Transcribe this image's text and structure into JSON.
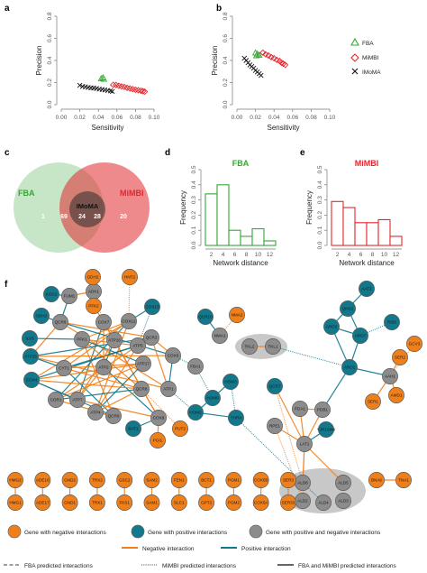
{
  "panel_labels": {
    "a": "a",
    "b": "b",
    "c": "c",
    "d": "d",
    "e": "e",
    "f": "f"
  },
  "colors": {
    "fba": "#35a735",
    "mimbi": "#e0282e",
    "imoma": "#111111",
    "orange": "#ef7f1a",
    "teal": "#12788c",
    "gray": "#8c8c8c"
  },
  "chart_data": [
    {
      "id": "a",
      "type": "scatter",
      "xlabel": "Sensitivity",
      "ylabel": "Precision",
      "xlim": [
        0,
        0.1
      ],
      "ylim": [
        0,
        0.8
      ],
      "x_ticks": [
        "0.00",
        "0.02",
        "0.04",
        "0.06",
        "0.08",
        "0.10"
      ],
      "y_ticks": [
        "0.0",
        "0.2",
        "0.4",
        "0.6",
        "0.8"
      ],
      "series": [
        {
          "name": "FBA",
          "marker": "triangle",
          "points": [
            [
              0.045,
              0.245
            ],
            [
              0.043,
              0.236
            ],
            [
              0.046,
              0.232
            ]
          ]
        },
        {
          "name": "MiMBI",
          "marker": "diamond",
          "points": [
            [
              0.056,
              0.18
            ],
            [
              0.059,
              0.178
            ],
            [
              0.062,
              0.171
            ],
            [
              0.065,
              0.165
            ],
            [
              0.068,
              0.16
            ],
            [
              0.071,
              0.152
            ],
            [
              0.074,
              0.147
            ],
            [
              0.077,
              0.141
            ],
            [
              0.08,
              0.135
            ],
            [
              0.083,
              0.131
            ],
            [
              0.086,
              0.126
            ],
            [
              0.088,
              0.122
            ],
            [
              0.09,
              0.118
            ]
          ]
        },
        {
          "name": "IMoMA",
          "marker": "cross",
          "points": [
            [
              0.02,
              0.175
            ],
            [
              0.023,
              0.165
            ],
            [
              0.026,
              0.161
            ],
            [
              0.029,
              0.156
            ],
            [
              0.032,
              0.152
            ],
            [
              0.035,
              0.15
            ],
            [
              0.038,
              0.146
            ],
            [
              0.041,
              0.14
            ],
            [
              0.044,
              0.137
            ],
            [
              0.047,
              0.133
            ],
            [
              0.05,
              0.129
            ],
            [
              0.053,
              0.125
            ],
            [
              0.055,
              0.12
            ]
          ]
        }
      ]
    },
    {
      "id": "b",
      "type": "scatter",
      "xlabel": "Sensitivity",
      "ylabel": "Precision",
      "xlim": [
        0,
        0.1
      ],
      "ylim": [
        0,
        0.8
      ],
      "x_ticks": [
        "0.00",
        "0.02",
        "0.04",
        "0.06",
        "0.08",
        "0.10"
      ],
      "y_ticks": [
        "0.0",
        "0.2",
        "0.4",
        "0.6",
        "0.8"
      ],
      "series": [
        {
          "name": "FBA",
          "marker": "triangle",
          "points": [
            [
              0.02,
              0.47
            ],
            [
              0.022,
              0.46
            ],
            [
              0.024,
              0.45
            ],
            [
              0.021,
              0.445
            ]
          ]
        },
        {
          "name": "MiMBI",
          "marker": "diamond",
          "points": [
            [
              0.028,
              0.47
            ],
            [
              0.031,
              0.455
            ],
            [
              0.034,
              0.445
            ],
            [
              0.037,
              0.43
            ],
            [
              0.04,
              0.42
            ],
            [
              0.043,
              0.405
            ],
            [
              0.046,
              0.395
            ],
            [
              0.048,
              0.38
            ],
            [
              0.05,
              0.37
            ],
            [
              0.052,
              0.36
            ]
          ]
        },
        {
          "name": "IMoMA",
          "marker": "cross",
          "points": [
            [
              0.008,
              0.42
            ],
            [
              0.01,
              0.4
            ],
            [
              0.012,
              0.38
            ],
            [
              0.014,
              0.36
            ],
            [
              0.016,
              0.345
            ],
            [
              0.018,
              0.33
            ],
            [
              0.02,
              0.31
            ],
            [
              0.022,
              0.295
            ],
            [
              0.024,
              0.28
            ],
            [
              0.026,
              0.265
            ]
          ]
        }
      ]
    },
    {
      "id": "d",
      "type": "bar",
      "title": "FBA",
      "xlabel": "Network distance",
      "ylabel": "Frequency",
      "categories": [
        "2",
        "4",
        "6",
        "8",
        "10",
        "12"
      ],
      "values": [
        0.34,
        0.4,
        0.1,
        0.06,
        0.11,
        0.03
      ],
      "ylim": [
        0,
        0.5
      ],
      "y_ticks": [
        "0.0",
        "0.1",
        "0.2",
        "0.3",
        "0.4",
        "0.5"
      ]
    },
    {
      "id": "e",
      "type": "bar",
      "title": "MiMBI",
      "xlabel": "Network distance",
      "ylabel": "Frequency",
      "categories": [
        "2",
        "4",
        "6",
        "8",
        "10",
        "12"
      ],
      "values": [
        0.29,
        0.25,
        0.15,
        0.15,
        0.17,
        0.06
      ],
      "ylim": [
        0,
        0.5
      ],
      "y_ticks": [
        "0.0",
        "0.1",
        "0.2",
        "0.3",
        "0.4",
        "0.5"
      ]
    }
  ],
  "legend_ab": [
    "FBA",
    "MiMBI",
    "IMoMA"
  ],
  "venn": {
    "left_label": "FBA",
    "right_label": "MiMBI",
    "center_label": "IMoMA",
    "only_fba": "1",
    "fba_mimbi": "69",
    "all_three": "24",
    "imoma_mimbi": "28",
    "only_mimbi": "20"
  },
  "network": {
    "nodes": [
      {
        "id": "KGD1",
        "t": "teal"
      },
      {
        "id": "SDH2",
        "t": "teal"
      },
      {
        "id": "ILV3",
        "t": "teal"
      },
      {
        "id": "ATP15",
        "t": "teal"
      },
      {
        "id": "COX4",
        "t": "teal"
      },
      {
        "id": "FUM1",
        "t": "gray"
      },
      {
        "id": "ADK1",
        "t": "gray"
      },
      {
        "id": "GDH2",
        "t": "orange"
      },
      {
        "id": "PFK2",
        "t": "orange"
      },
      {
        "id": "HNT2",
        "t": "orange"
      },
      {
        "id": "COX7",
        "t": "gray"
      },
      {
        "id": "COX12",
        "t": "gray"
      },
      {
        "id": "COX13",
        "t": "teal"
      },
      {
        "id": "QCR6",
        "t": "gray"
      },
      {
        "id": "PFK1",
        "t": "gray"
      },
      {
        "id": "ATP16",
        "t": "gray"
      },
      {
        "id": "ATP5",
        "t": "gray"
      },
      {
        "id": "QCR2",
        "t": "gray"
      },
      {
        "id": "CYT1",
        "t": "gray"
      },
      {
        "id": "ATP2",
        "t": "gray"
      },
      {
        "id": "ATP17",
        "t": "gray"
      },
      {
        "id": "COX6",
        "t": "gray"
      },
      {
        "id": "COR1",
        "t": "gray"
      },
      {
        "id": "ATP7",
        "t": "gray"
      },
      {
        "id": "QCR8",
        "t": "gray"
      },
      {
        "id": "ATP1",
        "t": "gray"
      },
      {
        "id": "ATP4",
        "t": "gray"
      },
      {
        "id": "COX9",
        "t": "gray"
      },
      {
        "id": "QCR9",
        "t": "gray"
      },
      {
        "id": "BAT1",
        "t": "teal"
      },
      {
        "id": "PGI1",
        "t": "orange"
      },
      {
        "id": "PUT2",
        "t": "orange"
      },
      {
        "id": "QCR10",
        "t": "teal"
      },
      {
        "id": "NMA2",
        "t": "orange"
      },
      {
        "id": "NMA1",
        "t": "gray"
      },
      {
        "id": "FBA1",
        "t": "gray"
      },
      {
        "id": "HOM3",
        "t": "teal"
      },
      {
        "id": "HOM6",
        "t": "teal"
      },
      {
        "id": "HOM2",
        "t": "teal"
      },
      {
        "id": "THR4",
        "t": "teal"
      },
      {
        "id": "TKL2",
        "t": "gray"
      },
      {
        "id": "TKL1",
        "t": "gray"
      },
      {
        "id": "AAT2",
        "t": "teal"
      },
      {
        "id": "QNS1",
        "t": "teal"
      },
      {
        "id": "ARO2",
        "t": "teal"
      },
      {
        "id": "ARO7",
        "t": "teal"
      },
      {
        "id": "RIB5",
        "t": "teal"
      },
      {
        "id": "GCV3",
        "t": "orange"
      },
      {
        "id": "ARO1",
        "t": "teal"
      },
      {
        "id": "AAH1",
        "t": "gray"
      },
      {
        "id": "SER2",
        "t": "orange"
      },
      {
        "id": "AMD1",
        "t": "orange"
      },
      {
        "id": "SER1",
        "t": "orange"
      },
      {
        "id": "QCR7",
        "t": "teal"
      },
      {
        "id": "PDA1",
        "t": "gray"
      },
      {
        "id": "PDB1",
        "t": "gray"
      },
      {
        "id": "YJR109W",
        "t": "teal"
      },
      {
        "id": "RPE1",
        "t": "gray"
      },
      {
        "id": "LAT1",
        "t": "gray"
      },
      {
        "id": "BNA6",
        "t": "orange"
      },
      {
        "id": "TNA1",
        "t": "orange"
      },
      {
        "id": "ALD6",
        "t": "gray"
      },
      {
        "id": "ALD5",
        "t": "gray"
      },
      {
        "id": "ALD2",
        "t": "gray"
      },
      {
        "id": "ALD4",
        "t": "gray"
      },
      {
        "id": "ALD3",
        "t": "gray"
      },
      {
        "id": "HMG2",
        "t": "orange"
      },
      {
        "id": "ADE16",
        "t": "orange"
      },
      {
        "id": "GND2",
        "t": "orange"
      },
      {
        "id": "TRX2",
        "t": "orange"
      },
      {
        "id": "GSC2",
        "t": "orange"
      },
      {
        "id": "SAM2",
        "t": "orange"
      },
      {
        "id": "FEN1",
        "t": "orange"
      },
      {
        "id": "BCT1",
        "t": "orange"
      },
      {
        "id": "PGM1",
        "t": "orange"
      },
      {
        "id": "COX5B",
        "t": "orange"
      },
      {
        "id": "SER3",
        "t": "orange"
      },
      {
        "id": "HMG1",
        "t": "orange"
      },
      {
        "id": "ADE17",
        "t": "orange"
      },
      {
        "id": "GND1",
        "t": "orange"
      },
      {
        "id": "TRX1",
        "t": "orange"
      },
      {
        "id": "FKS1",
        "t": "orange"
      },
      {
        "id": "SAM1",
        "t": "orange"
      },
      {
        "id": "SLC1",
        "t": "orange"
      },
      {
        "id": "GPT2",
        "t": "orange"
      },
      {
        "id": "PGM2",
        "t": "orange"
      },
      {
        "id": "COX5A",
        "t": "orange"
      },
      {
        "id": "SER33",
        "t": "orange"
      }
    ]
  },
  "legend_f": {
    "node_neg": "Gene with negative interactions",
    "node_pos": "Gene with positive interactions",
    "node_both": "Gene with positive and negative interactions",
    "edge_neg": "Negative interaction",
    "edge_pos": "Positive interaction",
    "fba_pred": "FBA predicted interactions",
    "mimbi_pred": "MiMBI predicted interactions",
    "both_pred": "FBA and MiMBI predicted interactions"
  }
}
